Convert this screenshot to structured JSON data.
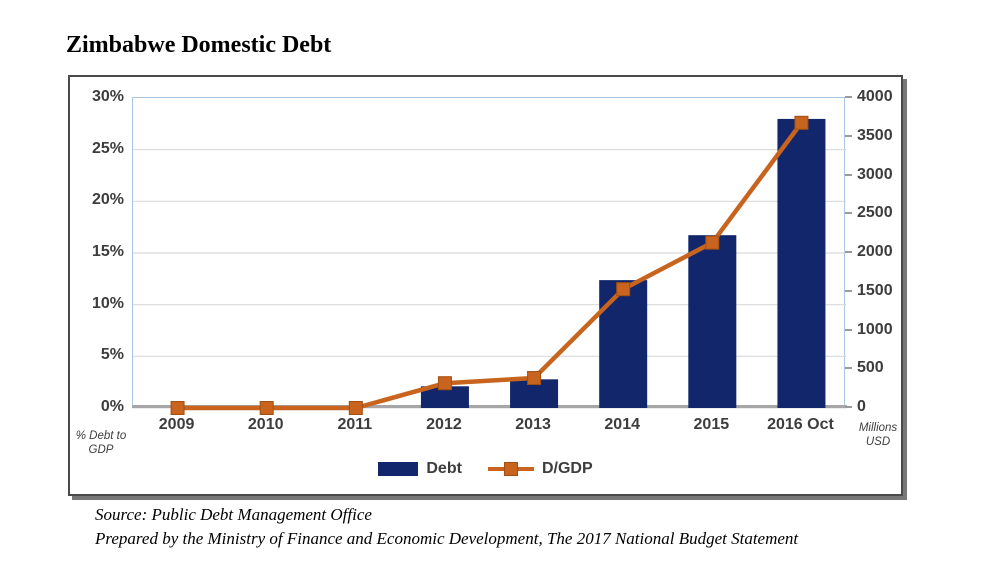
{
  "page": {
    "title": "Zimbabwe Domestic Debt",
    "source_line1": "Source: Public Debt Management Office",
    "source_line2": "Prepared by the Ministry of Finance and Economic Development, The 2017 National Budget Statement"
  },
  "colors": {
    "bar": "#12266b",
    "line": "#c8641e",
    "line_marker_edge": "#a34f12",
    "grid": "#d9d9d9",
    "axis_line": "#a6a6a6",
    "plot_border": "#a9c6e3",
    "tick_text": "#3d3d3d"
  },
  "chart_data": {
    "type": "combo",
    "categories": [
      "2009",
      "2010",
      "2011",
      "2012",
      "2013",
      "2014",
      "2015",
      "2016 Oct"
    ],
    "series": [
      {
        "name": "Debt",
        "type": "bar",
        "axis": "right",
        "values": [
          0,
          0,
          0,
          280,
          370,
          1650,
          2230,
          3730
        ]
      },
      {
        "name": "D/GDP",
        "type": "line",
        "axis": "left",
        "values": [
          0,
          0,
          0,
          2.4,
          2.9,
          11.5,
          16,
          27.6
        ]
      }
    ],
    "left_axis": {
      "label": "% Debt to GDP",
      "label_lines": [
        "% Debt to",
        "GDP"
      ],
      "min": 0,
      "max": 30,
      "step": 5,
      "ticks": [
        "0%",
        "5%",
        "10%",
        "15%",
        "20%",
        "25%",
        "30%"
      ]
    },
    "right_axis": {
      "label": "Millions USD",
      "label_lines": [
        "Millions",
        "USD"
      ],
      "min": 0,
      "max": 4000,
      "step": 500,
      "ticks": [
        "0",
        "500",
        "1000",
        "1500",
        "2000",
        "2500",
        "3000",
        "3500",
        "4000"
      ]
    },
    "grid": true,
    "legend_position": "bottom"
  }
}
